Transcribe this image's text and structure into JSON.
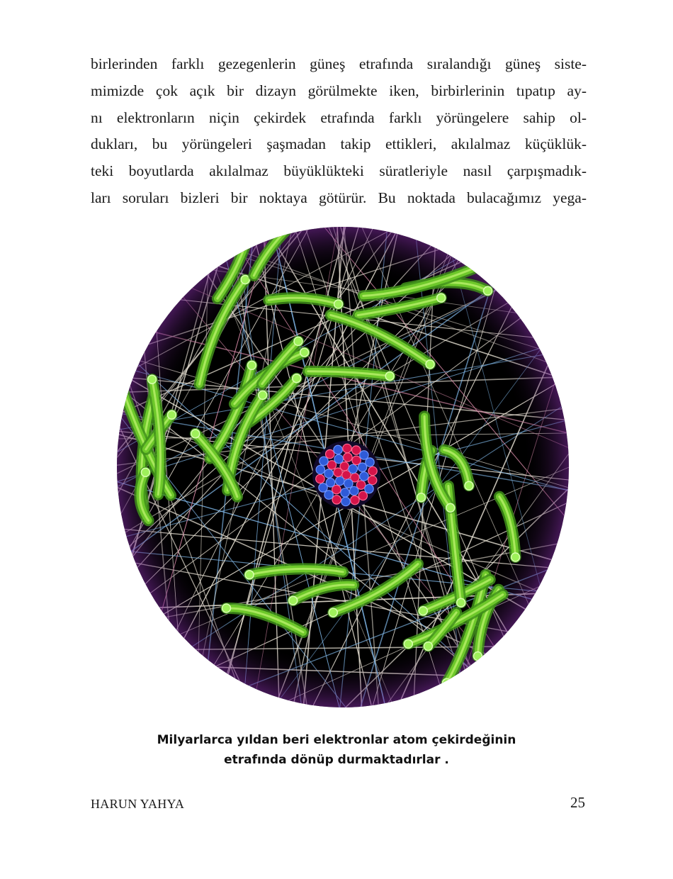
{
  "body_text": {
    "lines": [
      "birlerinden farklı gezegenlerin güneş etrafında sıralandığı güneş siste-",
      "mimizde çok açık bir dizayn görülmekte iken, birbirlerinin tıpatıp ay-",
      "nı elektronların niçin çekirdek etrafında farklı yörüngelere sahip ol-",
      "dukları, bu yörüngeleri şaşmadan takip ettikleri, akılalmaz küçüklük-",
      "teki boyutlarda akılalmaz büyüklükteki süratleriyle nasıl çarpışmadık-",
      "ları soruları bizleri bir noktaya götürür. Bu noktada bulacağımız yega-"
    ]
  },
  "figure": {
    "colors": {
      "background": "#000000",
      "orbit_lines": "#e6e0d2",
      "electron_trails": "#6dc82a",
      "proton": "#d4144a",
      "neutron": "#2f5bd8"
    }
  },
  "caption": {
    "line1": "Milyarlarca yıldan beri elektronlar atom çekirdeğinin",
    "line2": "etrafında dönüp durmaktadırlar ."
  },
  "footer": {
    "author": "HARUN YAHYA",
    "page_number": "25"
  }
}
